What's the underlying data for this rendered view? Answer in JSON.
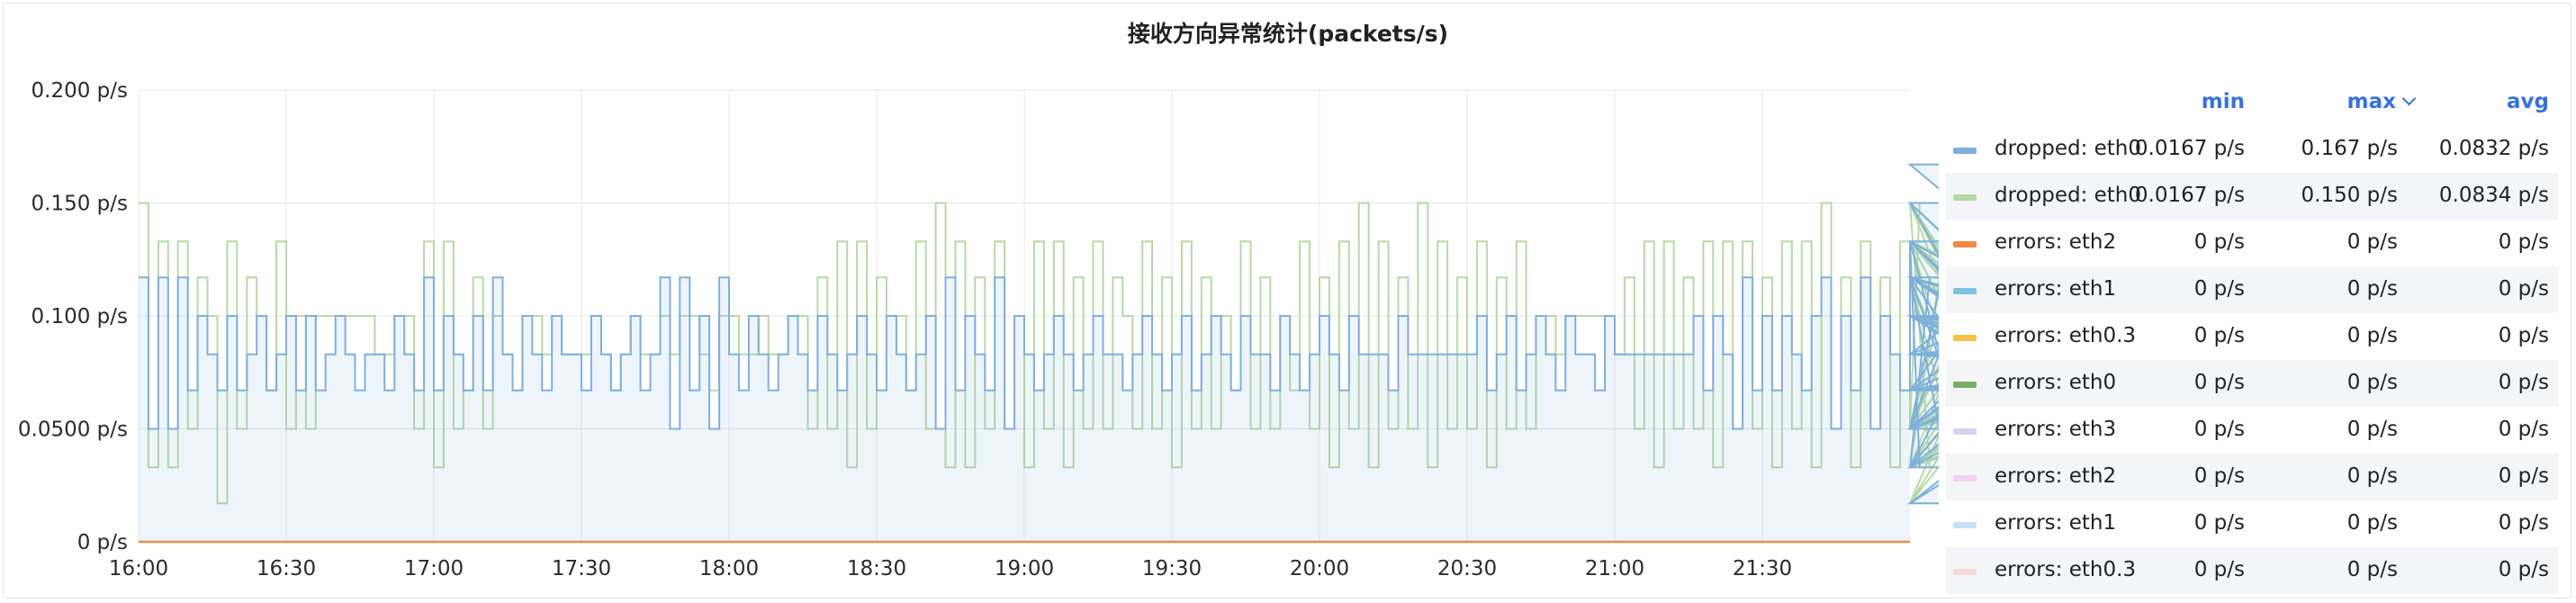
{
  "panel": {
    "title": "接收方向异常统计(packets/s)"
  },
  "legend": {
    "headers": {
      "min": "min",
      "max": "max",
      "avg": "avg"
    },
    "rows": [
      {
        "name": "dropped: eth0",
        "color": "#7eb0dc",
        "min": "0.0167 p/s",
        "max": "0.167 p/s",
        "avg": "0.0832 p/s"
      },
      {
        "name": "dropped: eth0",
        "color": "#b5daa6",
        "min": "0.0167 p/s",
        "max": "0.150 p/s",
        "avg": "0.0834 p/s"
      },
      {
        "name": "errors: eth2",
        "color": "#f08a44",
        "min": "0 p/s",
        "max": "0 p/s",
        "avg": "0 p/s"
      },
      {
        "name": "errors: eth1",
        "color": "#7cc5e0",
        "min": "0 p/s",
        "max": "0 p/s",
        "avg": "0 p/s"
      },
      {
        "name": "errors: eth0.3",
        "color": "#f2c445",
        "min": "0 p/s",
        "max": "0 p/s",
        "avg": "0 p/s"
      },
      {
        "name": "errors: eth0",
        "color": "#7fac68",
        "min": "0 p/s",
        "max": "0 p/s",
        "avg": "0 p/s"
      },
      {
        "name": "errors: eth3",
        "color": "#dcd0f2",
        "min": "0 p/s",
        "max": "0 p/s",
        "avg": "0 p/s"
      },
      {
        "name": "errors: eth2",
        "color": "#f2d2ee",
        "min": "0 p/s",
        "max": "0 p/s",
        "avg": "0 p/s"
      },
      {
        "name": "errors: eth1",
        "color": "#c5e2f2",
        "min": "0 p/s",
        "max": "0 p/s",
        "avg": "0 p/s"
      },
      {
        "name": "errors: eth0.3",
        "color": "#f6dada",
        "min": "0 p/s",
        "max": "0 p/s",
        "avg": "0 p/s"
      }
    ]
  },
  "chart_data": {
    "type": "line",
    "title": "接收方向异常统计(packets/s)",
    "unit": "p/s",
    "ylim": [
      0,
      0.2
    ],
    "y_ticks": [
      "0 p/s",
      "0.0500 p/s",
      "0.100 p/s",
      "0.150 p/s",
      "0.200 p/s"
    ],
    "y_tick_values": [
      0,
      0.05,
      0.1,
      0.15,
      0.2
    ],
    "x_ticks": [
      "16:00",
      "16:30",
      "17:00",
      "17:30",
      "18:00",
      "18:30",
      "19:00",
      "19:30",
      "20:00",
      "20:30",
      "21:00",
      "21:30"
    ],
    "x_range": [
      "16:00",
      "21:59"
    ],
    "sample_interval_min": 2,
    "grid": true,
    "legend_position": "right",
    "series": [
      {
        "name": "dropped: eth0",
        "color": "#7eb0dc",
        "fill": true,
        "values": [
          0.117,
          0.05,
          0.117,
          0.05,
          0.117,
          0.067,
          0.1,
          0.083,
          0.067,
          0.1,
          0.067,
          0.083,
          0.1,
          0.067,
          0.083,
          0.1,
          0.067,
          0.1,
          0.067,
          0.083,
          0.1,
          0.083,
          0.067,
          0.083,
          0.083,
          0.067,
          0.1,
          0.083,
          0.067,
          0.117,
          0.067,
          0.1,
          0.083,
          0.067,
          0.1,
          0.067,
          0.117,
          0.083,
          0.067,
          0.1,
          0.083,
          0.067,
          0.1,
          0.083,
          0.083,
          0.067,
          0.1,
          0.083,
          0.067,
          0.083,
          0.1,
          0.067,
          0.083,
          0.117,
          0.05,
          0.117,
          0.067,
          0.1,
          0.05,
          0.117,
          0.083,
          0.067,
          0.1,
          0.083,
          0.067,
          0.083,
          0.1,
          0.083,
          0.067,
          0.1,
          0.083,
          0.067,
          0.083,
          0.1,
          0.083,
          0.067,
          0.1,
          0.083,
          0.067,
          0.083,
          0.1,
          0.05,
          0.117,
          0.067,
          0.1,
          0.083,
          0.067,
          0.117,
          0.05,
          0.1,
          0.083,
          0.067,
          0.083,
          0.1,
          0.083,
          0.067,
          0.083,
          0.1,
          0.083,
          0.083,
          0.067,
          0.083,
          0.1,
          0.083,
          0.067,
          0.083,
          0.1,
          0.067,
          0.083,
          0.1,
          0.083,
          0.067,
          0.1,
          0.083,
          0.083,
          0.067,
          0.1,
          0.083,
          0.067,
          0.083,
          0.1,
          0.083,
          0.067,
          0.1,
          0.083,
          0.083,
          0.083,
          0.067,
          0.1,
          0.083,
          0.083,
          0.083,
          0.083,
          0.083,
          0.083,
          0.083,
          0.1,
          0.067,
          0.083,
          0.1,
          0.067,
          0.083,
          0.1,
          0.083,
          0.067,
          0.1,
          0.083,
          0.083,
          0.067,
          0.1,
          0.083,
          0.083,
          0.083,
          0.083,
          0.083,
          0.083,
          0.083,
          0.083,
          0.1,
          0.067,
          0.1,
          0.083,
          0.05,
          0.117,
          0.067,
          0.1,
          0.067,
          0.1,
          0.083,
          0.067,
          0.1,
          0.117,
          0.05,
          0.1,
          0.067,
          0.117,
          0.05,
          0.1,
          0.083,
          0.067,
          0.133,
          0.033,
          0.117,
          0.05,
          0.133,
          0.05,
          0.117,
          0.033,
          0.1,
          0.083,
          0.117,
          0.05,
          0.1,
          0.067,
          0.15,
          0.033,
          0.117,
          0.067,
          0.1,
          0.05,
          0.117,
          0.067,
          0.133,
          0.033,
          0.117,
          0.05,
          0.1,
          0.083,
          0.133,
          0.017,
          0.1,
          0.05,
          0.15,
          0.017,
          0.133,
          0.05,
          0.167,
          0.033,
          0.117,
          0.067,
          0.1,
          0.083,
          0.1,
          0.05,
          0.117,
          0.067,
          0.1,
          0.083,
          0.067,
          0.1,
          0.083,
          0.067,
          0.083,
          0.1,
          0.067,
          0.083,
          0.083,
          0.067,
          0.1,
          0.067,
          0.1,
          0.083,
          0.083,
          0.067,
          0.1,
          0.067,
          0.1,
          0.083
        ]
      },
      {
        "name": "dropped: eth0",
        "color": "#b5daa6",
        "fill": false,
        "values": [
          0.15,
          0.033,
          0.133,
          0.033,
          0.133,
          0.05,
          0.117,
          0.1,
          0.017,
          0.133,
          0.05,
          0.117,
          0.1,
          0.067,
          0.133,
          0.05,
          0.1,
          0.05,
          0.1,
          0.1,
          0.1,
          0.1,
          0.1,
          0.1,
          0.083,
          0.083,
          0.1,
          0.1,
          0.05,
          0.133,
          0.033,
          0.133,
          0.05,
          0.067,
          0.117,
          0.05,
          0.1,
          0.083,
          0.067,
          0.1,
          0.1,
          0.083,
          0.1,
          0.083,
          0.083,
          0.083,
          0.1,
          0.083,
          0.067,
          0.083,
          0.1,
          0.083,
          0.083,
          0.1,
          0.083,
          0.1,
          0.1,
          0.083,
          0.067,
          0.1,
          0.1,
          0.083,
          0.083,
          0.1,
          0.083,
          0.083,
          0.1,
          0.1,
          0.05,
          0.117,
          0.05,
          0.133,
          0.033,
          0.133,
          0.05,
          0.117,
          0.1,
          0.1,
          0.067,
          0.133,
          0.05,
          0.15,
          0.033,
          0.133,
          0.033,
          0.117,
          0.05,
          0.133,
          0.05,
          0.1,
          0.033,
          0.133,
          0.05,
          0.133,
          0.033,
          0.117,
          0.05,
          0.133,
          0.05,
          0.117,
          0.1,
          0.05,
          0.133,
          0.05,
          0.117,
          0.033,
          0.133,
          0.05,
          0.117,
          0.05,
          0.1,
          0.067,
          0.133,
          0.05,
          0.117,
          0.05,
          0.1,
          0.067,
          0.133,
          0.05,
          0.117,
          0.033,
          0.133,
          0.05,
          0.15,
          0.033,
          0.133,
          0.05,
          0.117,
          0.05,
          0.15,
          0.033,
          0.133,
          0.05,
          0.117,
          0.05,
          0.133,
          0.033,
          0.117,
          0.05,
          0.133,
          0.05,
          0.1,
          0.1,
          0.083,
          0.1,
          0.1,
          0.1,
          0.1,
          0.1,
          0.083,
          0.117,
          0.05,
          0.133,
          0.033,
          0.133,
          0.05,
          0.117,
          0.05,
          0.133,
          0.033,
          0.133,
          0.05,
          0.133,
          0.05,
          0.117,
          0.033,
          0.133,
          0.05,
          0.133,
          0.033,
          0.15,
          0.05,
          0.117,
          0.033,
          0.133,
          0.05,
          0.117,
          0.033,
          0.133,
          0.05,
          0.15,
          0.033,
          0.117,
          0.05,
          0.133,
          0.05,
          0.117,
          0.033,
          0.133,
          0.05,
          0.15,
          0.017,
          0.15,
          0.033,
          0.133,
          0.05,
          0.15,
          0.017,
          0.15,
          0.017,
          0.133,
          0.033,
          0.15,
          0.05,
          0.133,
          0.033,
          0.117,
          0.05,
          0.133,
          0.033,
          0.117,
          0.05,
          0.1,
          0.05,
          0.133,
          0.05,
          0.117,
          0.033,
          0.1,
          0.05,
          0.133,
          0.05,
          0.117,
          0.05,
          0.1,
          0.033,
          0.1,
          0.05,
          0.117,
          0.05,
          0.1,
          0.05,
          0.1,
          0.05
        ]
      },
      {
        "name": "errors: eth2",
        "color": "#f08a44",
        "fill": false,
        "values": [
          0
        ]
      }
    ]
  }
}
